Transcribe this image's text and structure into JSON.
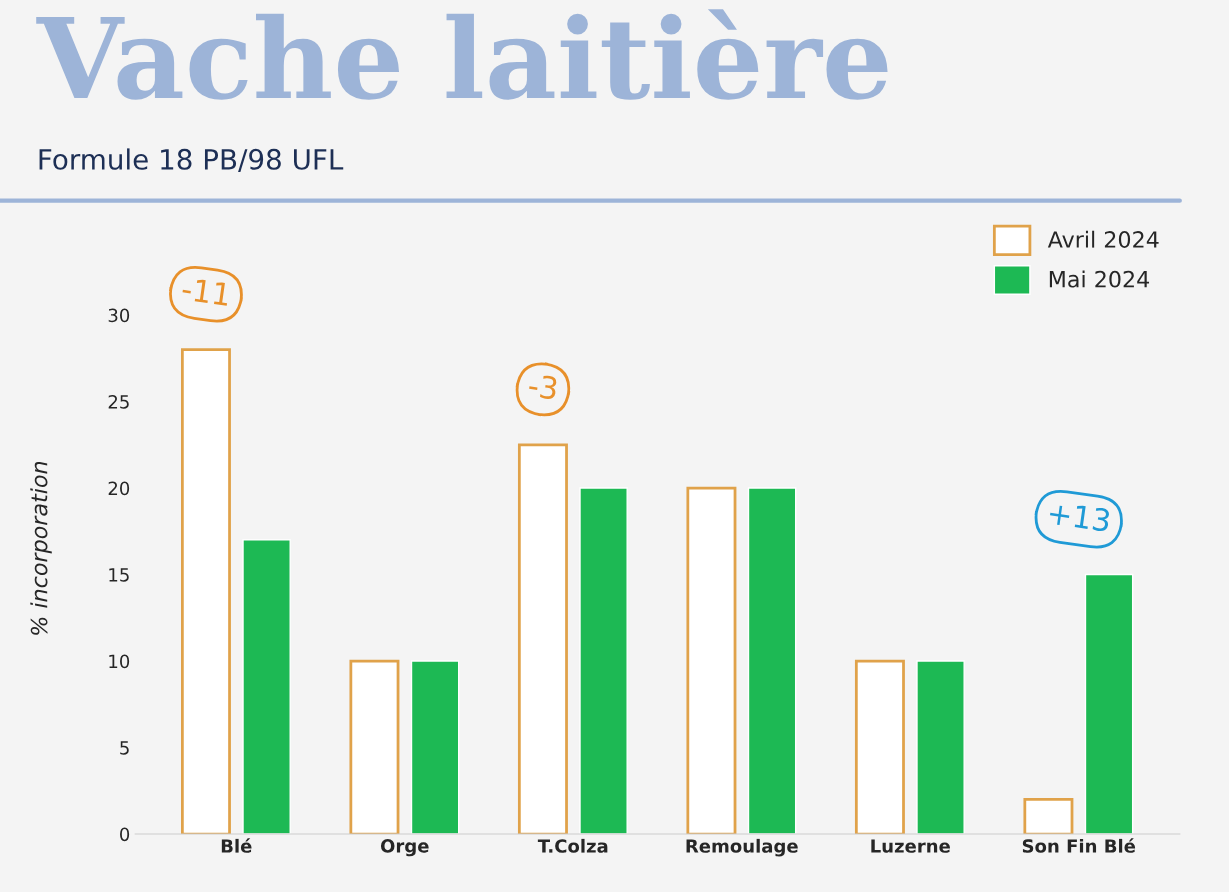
{
  "chart_data": {
    "type": "bar",
    "title": "Vache laitière",
    "subtitle": "Formule 18 PB/98 UFL",
    "ylabel": "% incorporation",
    "categories": [
      "Blé",
      "Orge",
      "T.Colza",
      "Remoulage",
      "Luzerne",
      "Son Fin Blé"
    ],
    "series": [
      {
        "name": "Avril 2024",
        "color": "#e0a24a",
        "values": [
          28,
          10,
          22.5,
          20,
          10,
          2
        ]
      },
      {
        "name": "Mai 2024",
        "color": "#1db954",
        "values": [
          17,
          10,
          20,
          20,
          10,
          15
        ]
      }
    ],
    "annotations": [
      "-11",
      "-3",
      "+13"
    ],
    "ylim": [
      0,
      33
    ],
    "yticks": [
      0,
      5,
      10,
      15,
      20,
      25,
      30
    ],
    "grid": false,
    "legend": "top right"
  }
}
